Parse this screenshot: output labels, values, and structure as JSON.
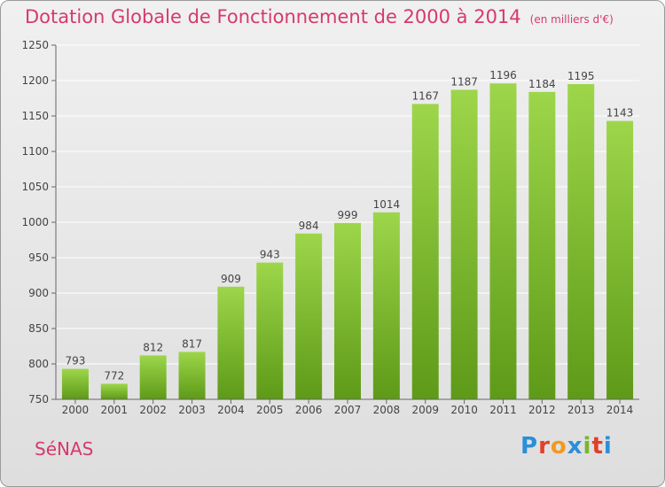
{
  "header": {
    "title": "Dotation Globale de Fonctionnement de 2000 à 2014",
    "subtitle": "(en milliers d'€)"
  },
  "footer": {
    "commune": "SéNAS",
    "logo_letters": [
      "P",
      "r",
      "o",
      "x",
      "i",
      "t",
      "i"
    ],
    "logo_colors": [
      "#2a8fd8",
      "#e0402a",
      "#f29a1c",
      "#2a8fd8",
      "#7ab530",
      "#e0402a",
      "#2a8fd8"
    ]
  },
  "colors": {
    "bar_light": "#9dd64a",
    "bar_dark": "#5e9a18",
    "grid": "#ffffff",
    "axis": "#666666"
  },
  "chart_data": {
    "type": "bar",
    "title": "Dotation Globale de Fonctionnement de 2000 à 2014",
    "subtitle": "(en milliers d'€)",
    "categories": [
      "2000",
      "2001",
      "2002",
      "2003",
      "2004",
      "2005",
      "2006",
      "2007",
      "2008",
      "2009",
      "2010",
      "2011",
      "2012",
      "2013",
      "2014"
    ],
    "values": [
      793,
      772,
      812,
      817,
      909,
      943,
      984,
      999,
      1014,
      1167,
      1187,
      1196,
      1184,
      1195,
      1143
    ],
    "ylim": [
      750,
      1250
    ],
    "yticks": [
      750,
      800,
      850,
      900,
      950,
      1000,
      1050,
      1100,
      1150,
      1200,
      1250
    ],
    "grid": true,
    "xlabel": "",
    "ylabel": ""
  }
}
